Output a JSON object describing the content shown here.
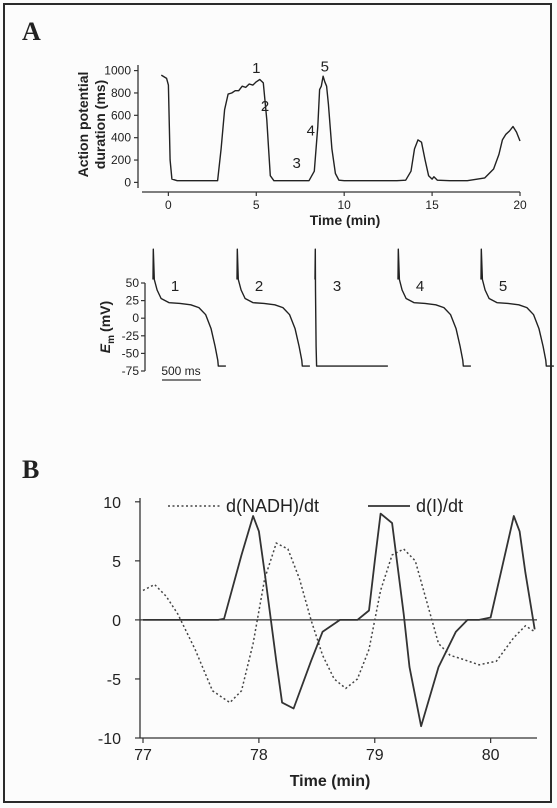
{
  "figure": {
    "panel_a_letter": "A",
    "panel_b_letter": "B"
  },
  "chart_data": [
    {
      "type": "line",
      "ylabel_line1": "Action potential",
      "ylabel_line2": "duration (ms)",
      "xlabel": "Time (min)",
      "xlim": [
        -1.5,
        20
      ],
      "ylim": [
        -50,
        1050
      ],
      "xticks": [
        0,
        5,
        10,
        15,
        20
      ],
      "yticks": [
        0,
        200,
        400,
        600,
        800,
        1000
      ],
      "series": [
        {
          "x": [
            -0.4,
            -0.1,
            0.0,
            0.1,
            0.2,
            0.5,
            1,
            2,
            2.8,
            3.0,
            3.2,
            3.4,
            3.6,
            3.8,
            4.0,
            4.2,
            4.4,
            4.6,
            4.8,
            5.0,
            5.2,
            5.4,
            5.6,
            5.7,
            5.8,
            6.0,
            7,
            8,
            8.3,
            8.5,
            8.6,
            8.7,
            8.8,
            8.9,
            9.0,
            9.1,
            9.3,
            9.5,
            9.7,
            10,
            11,
            12,
            13,
            13.5,
            13.8,
            14.0,
            14.2,
            14.4,
            14.6,
            14.8,
            15.0,
            15.1,
            15.3,
            16,
            17,
            18,
            18.5,
            18.8,
            19.0,
            19.2,
            19.4,
            19.6,
            19.8,
            20.0
          ],
          "y": [
            960,
            930,
            870,
            200,
            30,
            15,
            15,
            15,
            15,
            300,
            650,
            790,
            800,
            820,
            820,
            860,
            850,
            880,
            870,
            900,
            920,
            890,
            560,
            300,
            60,
            15,
            15,
            15,
            100,
            500,
            830,
            860,
            950,
            900,
            860,
            700,
            300,
            80,
            20,
            15,
            15,
            15,
            15,
            20,
            100,
            300,
            380,
            360,
            200,
            60,
            30,
            50,
            20,
            15,
            15,
            40,
            120,
            250,
            380,
            430,
            460,
            500,
            450,
            370
          ],
          "annotations": [
            {
              "text": "1",
              "x": 5.0,
              "y": 980
            },
            {
              "text": "2",
              "x": 5.5,
              "y": 640
            },
            {
              "text": "3",
              "x": 7.3,
              "y": 130
            },
            {
              "text": "4",
              "x": 8.1,
              "y": 420
            },
            {
              "text": "5",
              "x": 8.9,
              "y": 990
            }
          ]
        }
      ]
    },
    {
      "type": "line",
      "ylabel": "Em (mV)",
      "ylabel_main": "E",
      "ylabel_sub": "m",
      "ylabel_unit": "(mV)",
      "ylim": [
        -75,
        50
      ],
      "yticks": [
        -75,
        -50,
        -25,
        0,
        25,
        50
      ],
      "scalebar": "500 ms",
      "traces": [
        {
          "label": "1",
          "t": [
            0,
            1,
            5,
            15,
            30,
            60,
            100,
            140,
            170,
            195,
            215,
            230,
            240,
            242,
            250,
            270
          ],
          "v": [
            55,
            98,
            55,
            40,
            28,
            22,
            21,
            19,
            15,
            5,
            -15,
            -40,
            -60,
            -68,
            -68,
            -68
          ]
        },
        {
          "label": "2",
          "t": [
            0,
            1,
            5,
            15,
            30,
            60,
            100,
            140,
            170,
            195,
            215,
            230,
            240,
            242,
            250,
            270
          ],
          "v": [
            55,
            98,
            55,
            40,
            28,
            22,
            21,
            19,
            15,
            5,
            -15,
            -40,
            -60,
            -68,
            -68,
            -68
          ]
        },
        {
          "label": "3",
          "t": [
            0,
            1,
            2,
            3,
            4,
            6,
            20,
            60,
            100,
            140,
            180,
            220,
            260,
            270
          ],
          "v": [
            55,
            98,
            40,
            0,
            -40,
            -68,
            -68,
            -68,
            -68,
            -68,
            -68,
            -68,
            -68,
            -68
          ]
        },
        {
          "label": "4",
          "t": [
            0,
            1,
            5,
            15,
            30,
            60,
            100,
            140,
            170,
            195,
            215,
            230,
            240,
            242,
            250,
            270
          ],
          "v": [
            55,
            98,
            55,
            40,
            28,
            22,
            21,
            19,
            15,
            5,
            -15,
            -40,
            -60,
            -68,
            -68,
            -68
          ]
        },
        {
          "label": "5",
          "t": [
            0,
            1,
            5,
            15,
            30,
            60,
            100,
            140,
            170,
            195,
            215,
            230,
            240,
            242,
            250,
            270
          ],
          "v": [
            55,
            98,
            55,
            40,
            28,
            22,
            21,
            19,
            15,
            5,
            -15,
            -40,
            -60,
            -68,
            -68,
            -68
          ]
        }
      ]
    },
    {
      "type": "line",
      "xlabel": "Time (min)",
      "xlim": [
        77,
        80.4
      ],
      "ylim": [
        -10,
        11
      ],
      "xticks": [
        77,
        78,
        79,
        80
      ],
      "yticks": [
        -10,
        -5,
        0,
        5,
        10
      ],
      "grid": false,
      "legend_position": "top",
      "series": [
        {
          "name": "d(NADH)/dt",
          "style": "dotted",
          "x": [
            77.0,
            77.1,
            77.2,
            77.3,
            77.45,
            77.6,
            77.75,
            77.85,
            77.95,
            78.05,
            78.15,
            78.25,
            78.35,
            78.45,
            78.55,
            78.65,
            78.75,
            78.85,
            78.95,
            79.05,
            79.15,
            79.25,
            79.35,
            79.45,
            79.55,
            79.65,
            79.75,
            79.9,
            80.05,
            80.2,
            80.3,
            80.38
          ],
          "y": [
            2.5,
            3.0,
            2.0,
            0.5,
            -2.5,
            -6.0,
            -7.0,
            -6.0,
            -2.0,
            3.5,
            6.5,
            6.0,
            3.5,
            0.0,
            -3.0,
            -5.0,
            -5.8,
            -5.0,
            -2.5,
            2.5,
            5.5,
            6.0,
            5.0,
            1.5,
            -2.0,
            -3.0,
            -3.3,
            -3.8,
            -3.5,
            -1.5,
            -0.5,
            -1.0
          ]
        },
        {
          "name": "d(I)/dt",
          "style": "solid",
          "x": [
            77.0,
            77.3,
            77.5,
            77.65,
            77.7,
            77.85,
            77.95,
            78.0,
            78.05,
            78.15,
            78.2,
            78.3,
            78.45,
            78.55,
            78.7,
            78.85,
            78.95,
            79.0,
            79.05,
            79.15,
            79.25,
            79.3,
            79.4,
            79.55,
            79.7,
            79.8,
            79.9,
            80.0,
            80.1,
            80.2,
            80.25,
            80.3,
            80.38
          ],
          "y": [
            0,
            0,
            0,
            0,
            0.1,
            5.5,
            8.8,
            7.5,
            4.0,
            -3.5,
            -7.0,
            -7.5,
            -3.5,
            -1.0,
            0,
            0,
            0.8,
            5.0,
            9.0,
            8.2,
            0.5,
            -4.0,
            -9.0,
            -4.0,
            -1.0,
            0,
            0,
            0.2,
            4.5,
            8.8,
            7.5,
            4.0,
            -0.8
          ]
        }
      ]
    }
  ]
}
